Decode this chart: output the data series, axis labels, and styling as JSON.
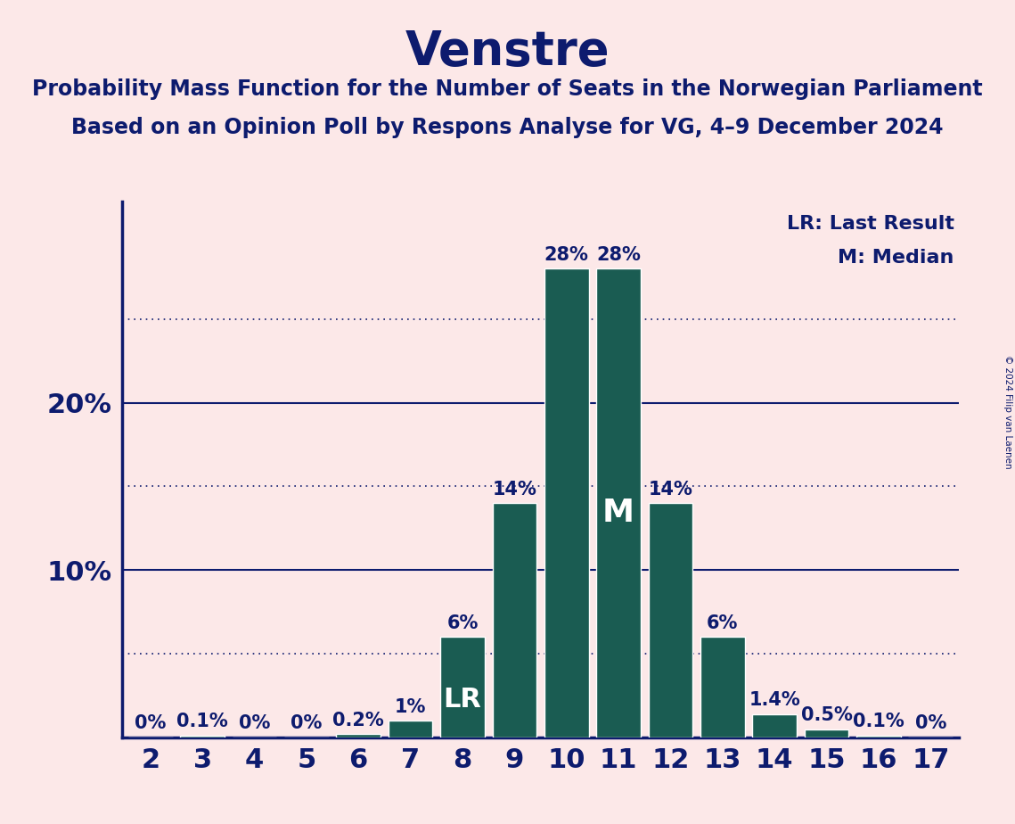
{
  "title": "Venstre",
  "subtitle1": "Probability Mass Function for the Number of Seats in the Norwegian Parliament",
  "subtitle2": "Based on an Opinion Poll by Respons Analyse for VG, 4–9 December 2024",
  "copyright": "© 2024 Filip van Laenen",
  "seats": [
    2,
    3,
    4,
    5,
    6,
    7,
    8,
    9,
    10,
    11,
    12,
    13,
    14,
    15,
    16,
    17
  ],
  "probabilities": [
    0.0,
    0.1,
    0.0,
    0.0,
    0.2,
    1.0,
    6.0,
    14.0,
    28.0,
    28.0,
    14.0,
    6.0,
    1.4,
    0.5,
    0.1,
    0.0
  ],
  "bar_color": "#1a5c52",
  "bar_edge_color": "#ffffff",
  "background_color": "#fce8e8",
  "text_color": "#0d1b6e",
  "title_fontsize": 38,
  "subtitle_fontsize": 17,
  "label_fontsize": 15,
  "tick_fontsize": 22,
  "ytick_fontsize": 22,
  "lr_seat": 8,
  "median_seat": 11,
  "solid_gridlines": [
    10.0,
    20.0
  ],
  "dotted_gridlines": [
    5.0,
    15.0,
    25.0
  ],
  "ylim": [
    0,
    32
  ],
  "legend_lr": "LR: Last Result",
  "legend_m": "M: Median",
  "legend_fontsize": 16
}
